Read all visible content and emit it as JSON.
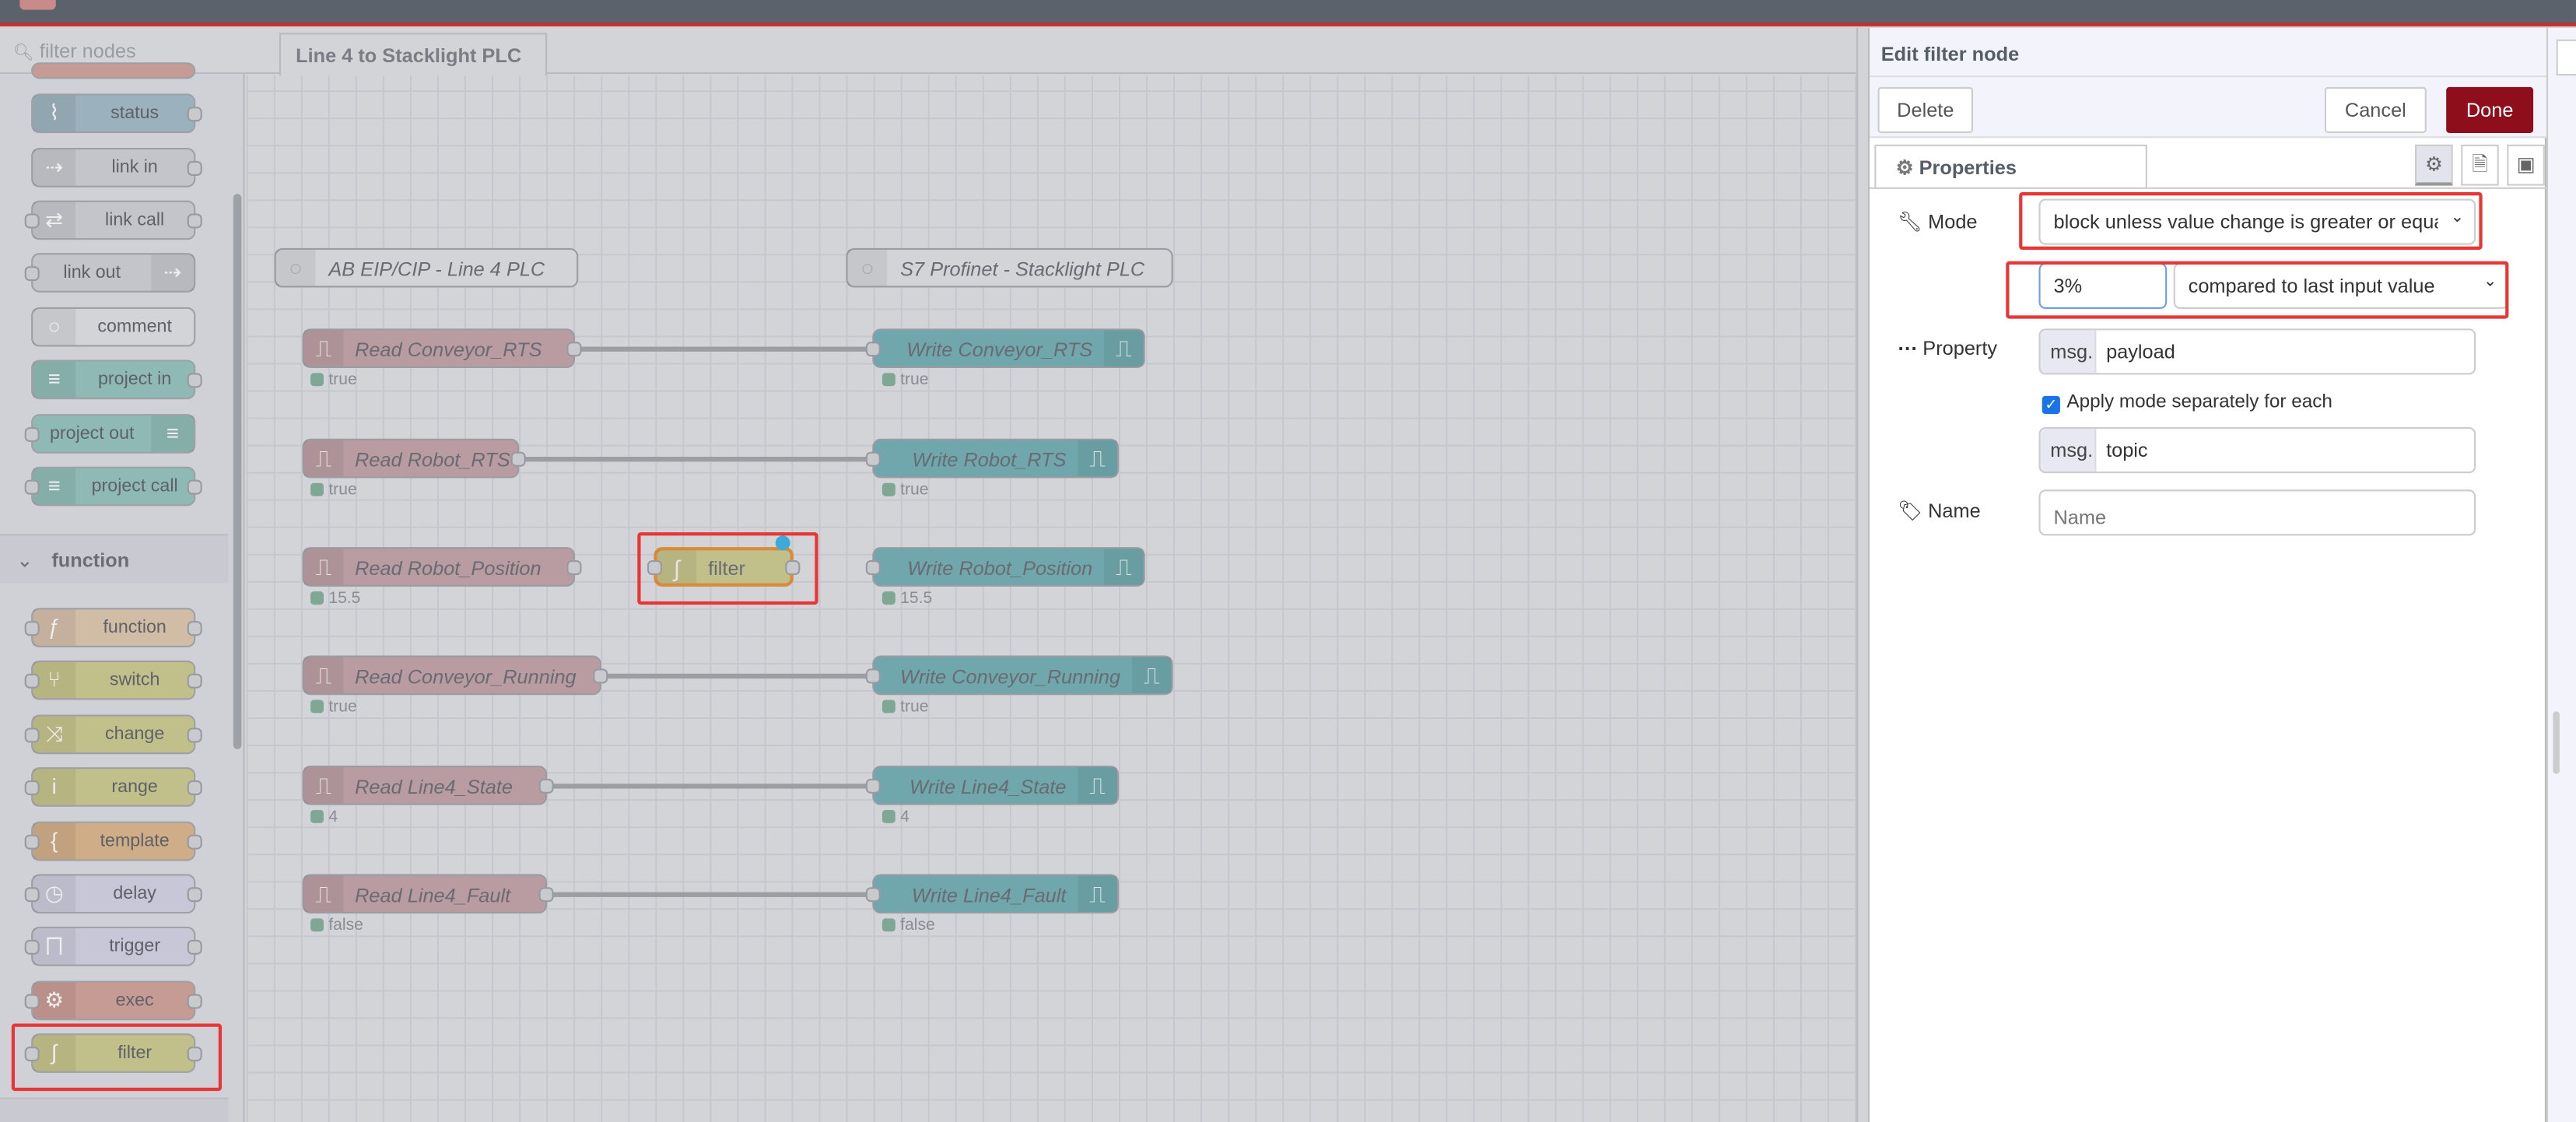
{
  "palette": {
    "search_placeholder": "filter nodes",
    "section_function": "function",
    "items_top": [
      {
        "label": "status",
        "icon": "status-icon",
        "color": "#9bb1bd"
      },
      {
        "label": "link in",
        "icon": "link-in-icon",
        "color": "#c4c5ca"
      },
      {
        "label": "link call",
        "icon": "link-call-icon",
        "color": "#c4c5ca"
      },
      {
        "label": "link out",
        "icon": "link-out-icon",
        "color": "#c4c5ca"
      },
      {
        "label": "comment",
        "icon": "comment-icon",
        "color": "#d3d4d8"
      },
      {
        "label": "project in",
        "icon": "project-in-icon",
        "color": "#8fb9b4"
      },
      {
        "label": "project out",
        "icon": "project-out-icon",
        "color": "#8fb9b4"
      },
      {
        "label": "project call",
        "icon": "project-call-icon",
        "color": "#8fb9b4"
      }
    ],
    "items_function": [
      {
        "label": "function",
        "icon": "function-icon",
        "color": "#d1bca6"
      },
      {
        "label": "switch",
        "icon": "switch-icon",
        "color": "#c2c08a"
      },
      {
        "label": "change",
        "icon": "change-icon",
        "color": "#c2c08a"
      },
      {
        "label": "range",
        "icon": "range-icon",
        "color": "#c2c08a"
      },
      {
        "label": "template",
        "icon": "template-icon",
        "color": "#cfad86"
      },
      {
        "label": "delay",
        "icon": "delay-icon",
        "color": "#c8c7d7"
      },
      {
        "label": "trigger",
        "icon": "trigger-icon",
        "color": "#c8c7d7"
      },
      {
        "label": "exec",
        "icon": "exec-icon",
        "color": "#c59b93"
      },
      {
        "label": "filter",
        "icon": "filter-icon",
        "color": "#c2c08a"
      }
    ]
  },
  "workspace": {
    "tab": "Line 4 to Stacklight PLC",
    "comments": [
      "AB EIP/CIP - Line 4 PLC",
      "S7 Profinet - Stacklight PLC"
    ],
    "rows": [
      {
        "read": "Read Conveyor_RTS",
        "read_status": "true",
        "write": "Write Conveyor_RTS",
        "write_status": "true",
        "wired": true
      },
      {
        "read": "Read Robot_RTS",
        "read_status": "true",
        "write": "Write Robot_RTS",
        "write_status": "true",
        "wired": true
      },
      {
        "read": "Read Robot_Position",
        "read_status": "15.5",
        "write": "Write Robot_Position",
        "write_status": "15.5",
        "wired": false
      },
      {
        "read": "Read Conveyor_Running",
        "read_status": "true",
        "write": "Write Conveyor_Running",
        "write_status": "true",
        "wired": true
      },
      {
        "read": "Read Line4_State",
        "read_status": "4",
        "write": "Write Line4_State",
        "write_status": "4",
        "wired": true
      },
      {
        "read": "Read Line4_Fault",
        "read_status": "false",
        "write": "Write Line4_Fault",
        "write_status": "false",
        "wired": true
      }
    ],
    "filter_node": "filter",
    "colors": {
      "read": "#b89ca2",
      "write": "#6fa7ad",
      "filter": "#c2c08a",
      "status": "#7fa796"
    }
  },
  "editor": {
    "title": "Edit filter node",
    "delete": "Delete",
    "cancel": "Cancel",
    "done": "Done",
    "done_color": "#8f0e1c",
    "tab_properties": "Properties",
    "mode_label": "Mode",
    "mode_value": "block unless value change is greater or equal t",
    "threshold_value": "3%",
    "compare_value": "compared to last input value",
    "property_label": "Property",
    "property_prefix": "msg.",
    "property_value": "payload",
    "apply_separately_label": "Apply mode separately for each",
    "apply_separately_checked": true,
    "topic_prefix": "msg.",
    "topic_value": "topic",
    "name_label": "Name",
    "name_placeholder": "Name"
  }
}
